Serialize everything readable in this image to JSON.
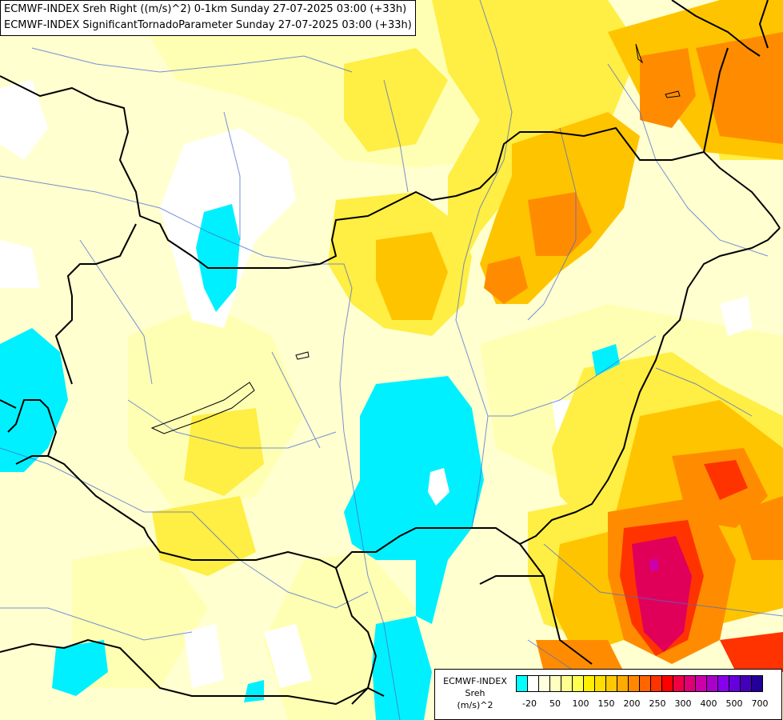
{
  "titles": {
    "line1": "ECMWF-INDEX Sreh Right ((m/s)^2) 0-1km Sunday 27-07-2025 03:00 (+33h)",
    "line2": "ECMWF-INDEX SignificantTornadoParameter Sunday 27-07-2025 03:00 (+33h)"
  },
  "legend": {
    "title": "ECMWF-INDEX",
    "subtitle": "Sreh",
    "unit": "(m/s)^2",
    "colors": [
      "#00ffff",
      "#ffffff",
      "#ffffe0",
      "#ffffc0",
      "#ffff90",
      "#ffff50",
      "#ffee00",
      "#ffdd00",
      "#ffc800",
      "#ffaa00",
      "#ff8800",
      "#ff6600",
      "#ff3300",
      "#ff0000",
      "#ee0044",
      "#dd0077",
      "#cc00aa",
      "#aa00cc",
      "#8800ee",
      "#6600dd",
      "#4400bb",
      "#220099"
    ],
    "tick_labels": [
      "-20",
      "50",
      "100",
      "150",
      "200",
      "250",
      "300",
      "400",
      "500",
      "700"
    ]
  }
}
